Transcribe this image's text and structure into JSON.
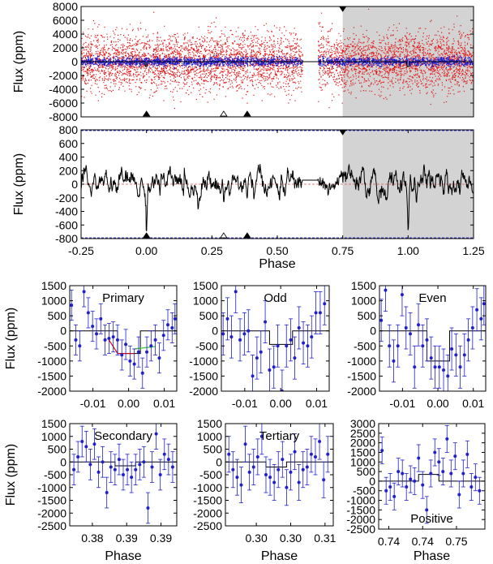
{
  "figure": "Transit light curve diagnostic (DV-style) panels",
  "colors": {
    "raw": "#e41a1a",
    "binned": "#1f1fd0",
    "model": "#000000",
    "shade": "#d3d3d3",
    "dashed_limit": "#2222cc",
    "fit_red": "#e00000",
    "fit_green": "#33cc33",
    "zero_line": "#e05050"
  },
  "chart_data": [
    {
      "id": "full_raw",
      "type": "scatter",
      "title": "",
      "xlabel": "",
      "ylabel": "Flux (ppm)",
      "xlim": [
        -0.25,
        1.25
      ],
      "ylim": [
        -8000,
        8000
      ],
      "yticks": [
        8000,
        6000,
        4000,
        2000,
        0,
        -2000,
        -4000,
        -6000,
        -8000
      ],
      "xticks": [],
      "gap": [
        0.595,
        0.655
      ],
      "shaded_from": 0.75,
      "series": [
        {
          "name": "raw flux",
          "scatter_sd": 2000
        },
        {
          "name": "binned flux",
          "scatter_sd": 300
        },
        {
          "name": "model",
          "depth": -700,
          "transit_phases": [
            0.0,
            1.0
          ]
        }
      ],
      "markers_bottom": [
        0.0,
        0.295,
        0.385
      ],
      "marker_top": 0.75
    },
    {
      "id": "full_binned",
      "type": "line",
      "xlabel": "Phase",
      "ylabel": "Flux (ppm)",
      "xlim": [
        -0.25,
        1.25
      ],
      "ylim": [
        -800,
        800
      ],
      "yticks": [
        800,
        600,
        400,
        200,
        0,
        -200,
        -400,
        -600,
        -800
      ],
      "xticks": [
        -0.25,
        0.0,
        0.25,
        0.5,
        0.75,
        1.0,
        1.25
      ],
      "xtick_labels": [
        "-0.25",
        "0.00",
        "0.25",
        "0.50",
        "0.75",
        "1.00",
        "1.25"
      ],
      "dashed_limits": [
        790,
        -790
      ],
      "gap": [
        0.595,
        0.655
      ],
      "shaded_from": 0.75,
      "dips": [
        {
          "x": 0.0,
          "depth": -680
        },
        {
          "x": 1.0,
          "depth": -680
        },
        {
          "x": 0.385,
          "depth": -250
        },
        {
          "x": 0.885,
          "depth": -250
        }
      ],
      "markers_bottom": [
        0.0,
        0.295,
        0.385
      ],
      "marker_top": 0.75
    },
    {
      "id": "primary",
      "type": "scatter",
      "label": "Primary",
      "label_pos": "top-center",
      "ylabel": "Flux (ppm)",
      "xlabel": "",
      "xlim": [
        -0.0165,
        0.0135
      ],
      "ylim": [
        -2000,
        1500
      ],
      "yticks": [
        1500,
        1000,
        500,
        0,
        -500,
        -1000,
        -1500,
        -2000
      ],
      "xticks": [
        -0.01,
        0.0,
        0.01
      ],
      "xtick_labels": [
        "-0.01",
        "0.00",
        "0.01"
      ],
      "points_x": [
        -0.016,
        -0.0148,
        -0.0137,
        -0.0125,
        -0.0113,
        -0.0101,
        -0.009,
        -0.0078,
        -0.0066,
        -0.0055,
        -0.0043,
        -0.0031,
        -0.0019,
        -0.0008,
        0.0004,
        0.0016,
        0.0028,
        0.0039,
        0.0051,
        0.0063,
        0.0075,
        0.0086,
        0.0098,
        0.011,
        0.0122,
        0.013
      ],
      "points_y": [
        850,
        -300,
        -500,
        1300,
        600,
        150,
        -100,
        400,
        -300,
        -250,
        -200,
        -300,
        -800,
        -450,
        -1000,
        -1100,
        -700,
        -1400,
        -700,
        -500,
        -300,
        -900,
        -150,
        200,
        100,
        400
      ],
      "err": 500,
      "model": {
        "type": "box",
        "in": [
          -0.0031,
          0.0033
        ],
        "depth": -750
      },
      "fit_red": [
        [
          -0.0055,
          -300
        ],
        [
          -0.0031,
          -750
        ],
        [
          0.0016,
          -750
        ]
      ],
      "fit_green": [
        [
          0.0016,
          -600
        ],
        [
          0.0045,
          -560
        ],
        [
          0.0075,
          -520
        ]
      ]
    },
    {
      "id": "odd",
      "type": "scatter",
      "label": "Odd",
      "label_pos": "top-center",
      "ylabel": "",
      "xlabel": "",
      "xlim": [
        -0.0165,
        0.0135
      ],
      "ylim": [
        -2000,
        1500
      ],
      "yticks": [
        1500,
        1000,
        500,
        0,
        -500,
        -1000,
        -1500,
        -2000
      ],
      "xticks": [
        -0.01,
        0.0,
        0.01
      ],
      "xtick_labels": [
        "-0.01",
        "0.00",
        "0.01"
      ],
      "points_x": [
        -0.016,
        -0.0148,
        -0.0137,
        -0.0125,
        -0.0113,
        -0.0101,
        -0.009,
        -0.0078,
        -0.0066,
        -0.0055,
        -0.0043,
        -0.0031,
        -0.0019,
        -0.0008,
        0.0004,
        0.0016,
        0.0028,
        0.0039,
        0.0051,
        0.0063,
        0.0075,
        0.0086,
        0.0098,
        0.011,
        0.0122
      ],
      "points_y": [
        -100,
        400,
        -200,
        1300,
        -300,
        -100,
        0,
        -1500,
        -900,
        -700,
        300,
        -1300,
        -1200,
        -500,
        -2000,
        -500,
        -300,
        -900,
        100,
        -400,
        -500,
        -200,
        600,
        600,
        900
      ],
      "err": 700,
      "model": {
        "type": "box",
        "in": [
          -0.0031,
          0.0033
        ],
        "depth": -450
      }
    },
    {
      "id": "even",
      "type": "scatter",
      "label": "Even",
      "label_pos": "top-center",
      "ylabel": "",
      "xlabel": "",
      "xlim": [
        -0.0165,
        0.0135
      ],
      "ylim": [
        -2000,
        1500
      ],
      "yticks": [
        1500,
        1000,
        500,
        0,
        -500,
        -1000,
        -1500,
        -2000
      ],
      "xticks": [
        -0.01,
        0.0,
        0.01
      ],
      "xtick_labels": [
        "-0.01",
        "0.00",
        "0.01"
      ],
      "points_x": [
        -0.016,
        -0.0148,
        -0.0137,
        -0.0125,
        -0.0113,
        -0.0101,
        -0.009,
        -0.0078,
        -0.0066,
        -0.0055,
        -0.0043,
        -0.0031,
        -0.0019,
        -0.0008,
        0.0004,
        0.0016,
        0.0028,
        0.0039,
        0.0051,
        0.0063,
        0.0075,
        0.0086,
        0.0098,
        0.011,
        0.0122,
        0.013
      ],
      "points_y": [
        350,
        1350,
        -500,
        -1000,
        -500,
        1200,
        100,
        -100,
        -1200,
        200,
        -500,
        -300,
        -900,
        -1200,
        -1200,
        -1300,
        -1500,
        -600,
        -800,
        -1200,
        -800,
        -300,
        100,
        700,
        400,
        900
      ],
      "err": 700,
      "model": {
        "type": "box",
        "in": [
          -0.0031,
          0.0033
        ],
        "depth": -1000
      }
    },
    {
      "id": "secondary",
      "type": "scatter",
      "label": "Secondary",
      "label_pos": "top-center",
      "ylabel": "Flux (ppm)",
      "xlabel": "Phase",
      "xlim": [
        0.3762,
        0.3918
      ],
      "ylim": [
        -2500,
        1500
      ],
      "yticks": [
        1500,
        1000,
        500,
        0,
        -500,
        -1000,
        -1500,
        -2000,
        -2500
      ],
      "xticks": [
        0.3795,
        0.3845,
        0.3895
      ],
      "xtick_labels": [
        "0.38",
        "0.39",
        "0.39"
      ],
      "points_x": [
        0.3768,
        0.3774,
        0.378,
        0.3786,
        0.3792,
        0.3798,
        0.3804,
        0.381,
        0.3816,
        0.3822,
        0.3828,
        0.3834,
        0.384,
        0.3846,
        0.3852,
        0.3858,
        0.3864,
        0.387,
        0.3876,
        0.3882,
        0.3888,
        0.3894,
        0.39,
        0.3906,
        0.3912
      ],
      "points_y": [
        -300,
        200,
        800,
        600,
        -100,
        700,
        -400,
        0,
        -1200,
        -200,
        -300,
        100,
        -500,
        -300,
        -600,
        -300,
        -100,
        0,
        -1800,
        -200,
        1100,
        -500,
        300,
        100,
        -200
      ],
      "err": 600,
      "model": {
        "type": "box",
        "in": [
          0.3828,
          0.3858
        ],
        "depth": -150
      }
    },
    {
      "id": "tertiary",
      "type": "scatter",
      "label": "Tertiary",
      "label_pos": "top-center",
      "ylabel": "",
      "xlabel": "Phase",
      "xlim": [
        0.2905,
        0.3062
      ],
      "ylim": [
        -2500,
        1500
      ],
      "yticks": [
        1500,
        1000,
        500,
        0,
        -500,
        -1000,
        -1500,
        -2000,
        -2500
      ],
      "xticks": [
        0.295,
        0.3,
        0.305
      ],
      "xtick_labels": [
        "0.30",
        "0.30",
        "0.31"
      ],
      "points_x": [
        0.291,
        0.2916,
        0.2922,
        0.2928,
        0.2934,
        0.294,
        0.2946,
        0.2952,
        0.2958,
        0.2964,
        0.297,
        0.2976,
        0.2982,
        0.2988,
        0.2994,
        0.3,
        0.3006,
        0.3012,
        0.3018,
        0.3024,
        0.303,
        0.3036,
        0.3042,
        0.3048,
        0.3054
      ],
      "points_y": [
        300,
        -300,
        -600,
        -900,
        700,
        -400,
        -200,
        200,
        1000,
        -500,
        -600,
        -800,
        -300,
        100,
        -1000,
        -400,
        400,
        -800,
        -300,
        -200,
        300,
        200,
        800,
        -700,
        300
      ],
      "err": 700,
      "model": {
        "type": "box",
        "in": [
          0.2964,
          0.2994
        ],
        "depth": -200
      }
    },
    {
      "id": "positive",
      "type": "scatter",
      "label": "Positive",
      "label_pos": "bottom-center",
      "ylabel": "",
      "xlabel": "Phase",
      "xlim": [
        0.7375,
        0.7532
      ],
      "ylim": [
        -2500,
        3000
      ],
      "yticks": [
        3000,
        2500,
        2000,
        1500,
        1000,
        500,
        0,
        -500,
        -1000,
        -1500,
        -2000,
        -2500
      ],
      "xticks": [
        0.739,
        0.744,
        0.749
      ],
      "xtick_labels": [
        "0.74",
        "0.74",
        "0.75"
      ],
      "points_x": [
        0.738,
        0.7386,
        0.7392,
        0.7398,
        0.7404,
        0.741,
        0.7416,
        0.7422,
        0.7428,
        0.7434,
        0.744,
        0.7446,
        0.7452,
        0.7458,
        0.7464,
        0.747,
        0.7476,
        0.7482,
        0.7488,
        0.7494,
        0.75,
        0.7506,
        0.7512,
        0.7518,
        0.7524
      ],
      "points_y": [
        1600,
        -500,
        -300,
        -800,
        500,
        400,
        -300,
        100,
        0,
        1200,
        -200,
        -1500,
        400,
        1500,
        1000,
        500,
        2200,
        400,
        1300,
        -700,
        400,
        1400,
        -300,
        200,
        -500
      ],
      "err": 700,
      "model": {
        "type": "box",
        "in": [
          0.7434,
          0.7464
        ],
        "depth": 350
      }
    }
  ]
}
